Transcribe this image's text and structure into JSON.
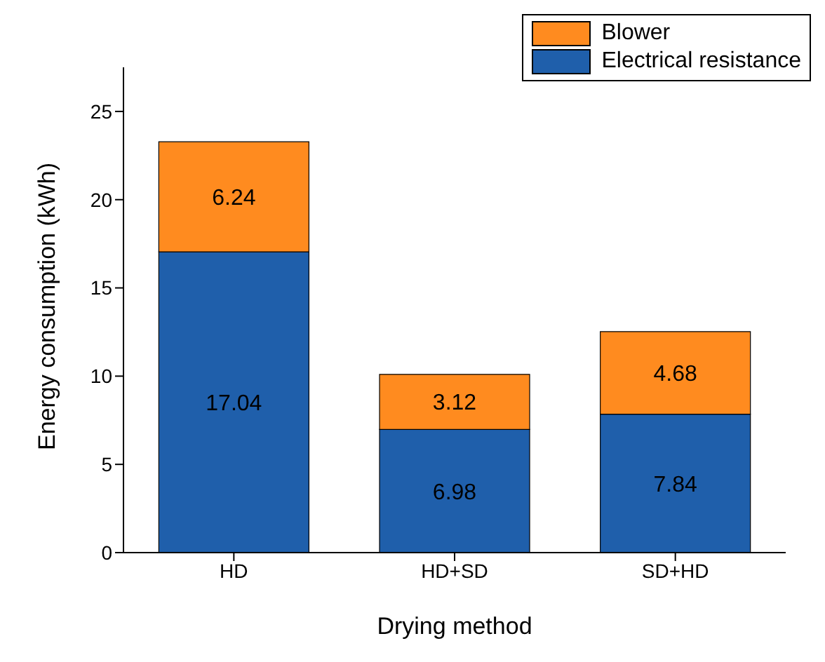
{
  "chart_data": {
    "type": "bar",
    "xlabel": "Drying method",
    "ylabel": "Energy consumption (kWh)",
    "categories": [
      "HD",
      "HD+SD",
      "SD+HD"
    ],
    "stacked": true,
    "data_labels": true,
    "legend": "top right",
    "ylim": [
      0,
      27.5
    ],
    "yticks": [
      0,
      5,
      10,
      15,
      20,
      25
    ],
    "series": [
      {
        "name": "Electrical resistance",
        "color": "#1f5fab",
        "values": [
          17.04,
          6.98,
          7.84
        ]
      },
      {
        "name": "Blower",
        "color": "#ff8b1f",
        "values": [
          6.24,
          3.12,
          4.68
        ]
      }
    ]
  }
}
